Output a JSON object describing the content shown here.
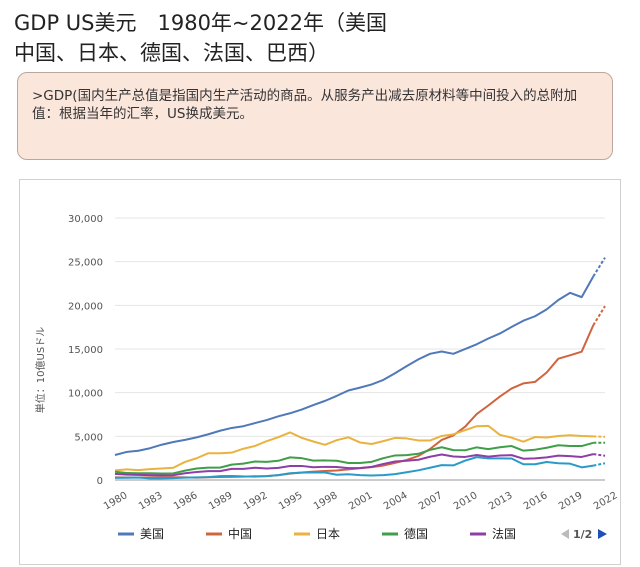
{
  "title_line1": "GDP US美元　1980年~2022年（美国",
  "title_line2": "中国、日本、德国、法国、巴西）",
  "note": ">GDP(国内生产总值是指国内生产活动的商品。从服务产出减去原材料等中间投入的总附加值：根据当年的汇率，US换成美元。",
  "pager_text": "1/2",
  "colors": {
    "usa": "#4f79b8",
    "china": "#d0643f",
    "japan": "#eab23e",
    "germany": "#3f9e48",
    "france": "#8e3fa6",
    "brazil": "#2b9ac8"
  },
  "chart_data": {
    "type": "line",
    "ylabel": "単位：10億USドル",
    "ylim": [
      0,
      30000
    ],
    "yticks": [
      "0",
      "5,000",
      "10,000",
      "15,000",
      "20,000",
      "25,000",
      "30,000"
    ],
    "xlim": [
      1980,
      2022
    ],
    "xticks": [
      "1980",
      "1983",
      "1986",
      "1989",
      "1992",
      "1995",
      "1998",
      "2001",
      "2004",
      "2007",
      "2010",
      "2013",
      "2016",
      "2019",
      "2022"
    ],
    "grid": true,
    "legend_position": "bottom",
    "x": [
      1980,
      1981,
      1982,
      1983,
      1984,
      1985,
      1986,
      1987,
      1988,
      1989,
      1990,
      1991,
      1992,
      1993,
      1994,
      1995,
      1996,
      1997,
      1998,
      1999,
      2000,
      2001,
      2002,
      2003,
      2004,
      2005,
      2006,
      2007,
      2008,
      2009,
      2010,
      2011,
      2012,
      2013,
      2014,
      2015,
      2016,
      2017,
      2018,
      2019,
      2020,
      2021,
      2022
    ],
    "series": [
      {
        "name": "美国",
        "key": "usa",
        "values": [
          2860,
          3210,
          3350,
          3640,
          4040,
          4350,
          4590,
          4880,
          5240,
          5640,
          5960,
          6160,
          6520,
          6860,
          7290,
          7640,
          8070,
          8580,
          9060,
          9630,
          10250,
          10580,
          10940,
          11460,
          12220,
          13040,
          13810,
          14450,
          14710,
          14450,
          14990,
          15540,
          16200,
          16780,
          17530,
          18240,
          18750,
          19540,
          20610,
          21430,
          20940,
          23320,
          25460
        ]
      },
      {
        "name": "中国",
        "key": "china",
        "values": [
          300,
          290,
          280,
          300,
          310,
          310,
          300,
          270,
          310,
          350,
          360,
          380,
          430,
          440,
          560,
          730,
          860,
          960,
          1030,
          1090,
          1210,
          1340,
          1470,
          1660,
          1960,
          2290,
          2750,
          3550,
          4590,
          5100,
          6090,
          7550,
          8530,
          9570,
          10480,
          11060,
          11230,
          12310,
          13890,
          14280,
          14690,
          17730,
          19910
        ]
      },
      {
        "name": "日本",
        "key": "japan",
        "values": [
          1100,
          1220,
          1130,
          1240,
          1320,
          1400,
          2070,
          2490,
          3070,
          3070,
          3130,
          3580,
          3900,
          4450,
          4900,
          5450,
          4830,
          4410,
          4030,
          4560,
          4890,
          4300,
          4120,
          4450,
          4820,
          4760,
          4530,
          4520,
          5040,
          5230,
          5700,
          6160,
          6200,
          5160,
          4850,
          4390,
          4920,
          4870,
          5040,
          5120,
          5040,
          5000,
          4940
        ]
      },
      {
        "name": "德国",
        "key": "germany",
        "values": [
          950,
          800,
          780,
          780,
          740,
          760,
          1070,
          1320,
          1420,
          1420,
          1760,
          1870,
          2120,
          2070,
          2200,
          2590,
          2500,
          2220,
          2240,
          2200,
          1950,
          1950,
          2080,
          2500,
          2810,
          2850,
          3000,
          3440,
          3750,
          3420,
          3400,
          3740,
          3540,
          3750,
          3890,
          3360,
          3470,
          3690,
          3980,
          3890,
          3890,
          4260,
          4260
        ]
      },
      {
        "name": "法国",
        "key": "france",
        "values": [
          700,
          620,
          590,
          560,
          530,
          550,
          770,
          920,
          1010,
          1020,
          1270,
          1270,
          1400,
          1320,
          1390,
          1600,
          1610,
          1460,
          1510,
          1490,
          1360,
          1380,
          1500,
          1840,
          2120,
          2200,
          2320,
          2660,
          2920,
          2690,
          2640,
          2860,
          2680,
          2810,
          2850,
          2440,
          2470,
          2590,
          2790,
          2730,
          2640,
          2960,
          2780
        ]
      },
      {
        "name": "",
        "key": "brazil",
        "values": [
          240,
          260,
          280,
          190,
          190,
          220,
          270,
          300,
          330,
          440,
          460,
          410,
          390,
          440,
          560,
          770,
          850,
          880,
          860,
          600,
          660,
          560,
          510,
          560,
          670,
          890,
          1110,
          1400,
          1700,
          1670,
          2210,
          2620,
          2470,
          2470,
          2460,
          1800,
          1800,
          2060,
          1920,
          1870,
          1450,
          1650,
          1920
        ]
      }
    ]
  }
}
